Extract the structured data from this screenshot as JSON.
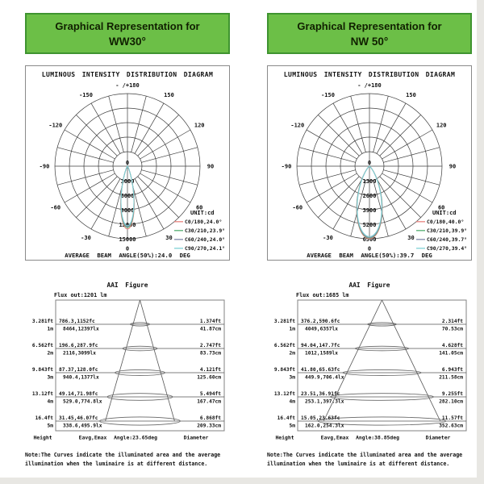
{
  "colors": {
    "header_bg": "#6cbf47",
    "header_border": "#3f9430",
    "grid": "#3c3c3c",
    "box_border": "#808080"
  },
  "columns": [
    {
      "header": {
        "line1": "Graphical Representation for",
        "line2": "WW30°"
      },
      "polar": {
        "title": "LUMINOUS INTENSITY DISTRIBUTION DIAGRAM",
        "top_label": "- /+180",
        "angle_labels": [
          {
            "text": "-150",
            "deg": -150
          },
          {
            "text": "150",
            "deg": 150
          },
          {
            "text": "-120",
            "deg": -120
          },
          {
            "text": "120",
            "deg": 120
          },
          {
            "text": "-90",
            "deg": -90
          },
          {
            "text": "90",
            "deg": 90
          },
          {
            "text": "-60",
            "deg": -60
          },
          {
            "text": "60",
            "deg": 60
          },
          {
            "text": "-30",
            "deg": -30
          },
          {
            "text": "30",
            "deg": 30
          },
          {
            "text": "0",
            "deg": 0
          }
        ],
        "radial_tick_labels": [
          "0",
          "3000",
          "6000",
          "9000",
          "12000",
          "15000"
        ],
        "unit_label": "UNIT:cd",
        "legend": [
          "C0/180,24.0°",
          "C30/210,23.9°",
          "C60/240,24.0°",
          "C90/270,24.1°"
        ],
        "footer": "AVERAGE BEAM ANGLE(50%):24.0 DEG"
      },
      "aai": {
        "title": "AAI Figure",
        "flux_label": "Flux out:1201 lm",
        "rows": [
          {
            "h_ft": "3.281ft",
            "h_m": "1m",
            "fc": "786.3,1152fc",
            "lx": "8464,12397lx",
            "d_ft": "1.374ft",
            "d_cm": "41.87cm"
          },
          {
            "h_ft": "6.562ft",
            "h_m": "2m",
            "fc": "196.6,287.9fc",
            "lx": "2116,3099lx",
            "d_ft": "2.747ft",
            "d_cm": "83.73cm"
          },
          {
            "h_ft": "9.843ft",
            "h_m": "3m",
            "fc": "87.37,128.0fc",
            "lx": "940.4,1377lx",
            "d_ft": "4.121ft",
            "d_cm": "125.60cm"
          },
          {
            "h_ft": "13.12ft",
            "h_m": "4m",
            "fc": "49.14,71.98fc",
            "lx": "529.0,774.8lx",
            "d_ft": "5.494ft",
            "d_cm": "167.47cm"
          },
          {
            "h_ft": "16.4ft",
            "h_m": "5m",
            "fc": "31.45,46.07fc",
            "lx": "338.6,495.9lx",
            "d_ft": "6.868ft",
            "d_cm": "209.33cm"
          }
        ],
        "col_height": "Height",
        "col_eavg": "Eavg,Emax",
        "angle_label": "Angle:23.65deg",
        "col_diameter": "Diameter"
      },
      "note": "Note:The Curves indicate the illuminated area and the average illumination when the luminaire is at different distance."
    },
    {
      "header": {
        "line1": "Graphical Representation for",
        "line2": "NW 50°"
      },
      "polar": {
        "title": "LUMINOUS INTENSITY DISTRIBUTION DIAGRAM",
        "top_label": "- /+180",
        "angle_labels": [
          {
            "text": "-150",
            "deg": -150
          },
          {
            "text": "150",
            "deg": 150
          },
          {
            "text": "-120",
            "deg": -120
          },
          {
            "text": "120",
            "deg": 120
          },
          {
            "text": "-90",
            "deg": -90
          },
          {
            "text": "90",
            "deg": 90
          },
          {
            "text": "-60",
            "deg": -60
          },
          {
            "text": "60",
            "deg": 60
          },
          {
            "text": "-30",
            "deg": -30
          },
          {
            "text": "30",
            "deg": 30
          },
          {
            "text": "0",
            "deg": 0
          }
        ],
        "radial_tick_labels": [
          "0",
          "1300",
          "2600",
          "3900",
          "5200",
          "6500"
        ],
        "unit_label": "UNIT:cd",
        "legend": [
          "C0/180,40.0°",
          "C30/210,39.9°",
          "C60/240,39.7°",
          "C90/270,39.4°"
        ],
        "footer": "AVERAGE BEAM ANGLE(50%):39.7 DEG"
      },
      "aai": {
        "title": "AAI Figure",
        "flux_label": "Flux out:1685 lm",
        "rows": [
          {
            "h_ft": "3.281ft",
            "h_m": "1m",
            "fc": "376.2,590.6fc",
            "lx": "4049,6357lx",
            "d_ft": "2.314ft",
            "d_cm": "70.53cm"
          },
          {
            "h_ft": "6.562ft",
            "h_m": "2m",
            "fc": "94.04,147.7fc",
            "lx": "1012,1589lx",
            "d_ft": "4.628ft",
            "d_cm": "141.05cm"
          },
          {
            "h_ft": "9.843ft",
            "h_m": "3m",
            "fc": "41.80,65.63fc",
            "lx": "449.9,706.4lx",
            "d_ft": "6.943ft",
            "d_cm": "211.58cm"
          },
          {
            "h_ft": "13.12ft",
            "h_m": "4m",
            "fc": "23.51,36.91fc",
            "lx": "253.1,397.3lx",
            "d_ft": "9.255ft",
            "d_cm": "282.10cm"
          },
          {
            "h_ft": "16.4ft",
            "h_m": "5m",
            "fc": "15.05,23.63fc",
            "lx": "162.0,254.3lx",
            "d_ft": "11.57ft",
            "d_cm": "352.63cm"
          }
        ],
        "col_height": "Height",
        "col_eavg": "Eavg,Emax",
        "angle_label": "Angle:38.85deg",
        "col_diameter": "Diameter"
      },
      "note": "Note:The Curves indicate the illuminated area and the average illumination when the luminaire is at different distance."
    }
  ],
  "chart_data": [
    {
      "type": "line",
      "subtype": "polar_intensity_distribution",
      "panel": "WW30",
      "title": "LUMINOUS INTENSITY DISTRIBUTION DIAGRAM",
      "unit": "cd",
      "radial_ticks_cd": [
        0,
        3000,
        6000,
        9000,
        12000,
        15000
      ],
      "angle_ticks_deg": [
        0,
        30,
        60,
        90,
        120,
        150,
        180,
        -30,
        -60,
        -90,
        -120,
        -150
      ],
      "average_beam_angle_50pct_deg": 24.0,
      "series": [
        {
          "name": "C0/180",
          "beam_angle_deg": 24.0,
          "peak_cd": 13000,
          "color": "#e8837e"
        },
        {
          "name": "C30/210",
          "beam_angle_deg": 23.9,
          "peak_cd": 12700,
          "color": "#54ae72"
        },
        {
          "name": "C60/240",
          "beam_angle_deg": 24.0,
          "peak_cd": 12500,
          "color": "#8289aa"
        },
        {
          "name": "C90/270",
          "beam_angle_deg": 24.1,
          "peak_cd": 12300,
          "color": "#7fd2d6"
        }
      ]
    },
    {
      "type": "line",
      "subtype": "polar_intensity_distribution",
      "panel": "NW50",
      "title": "LUMINOUS INTENSITY DISTRIBUTION DIAGRAM",
      "unit": "cd",
      "radial_ticks_cd": [
        0,
        1300,
        2600,
        3900,
        5200,
        6500
      ],
      "angle_ticks_deg": [
        0,
        30,
        60,
        90,
        120,
        150,
        180,
        -30,
        -60,
        -90,
        -120,
        -150
      ],
      "average_beam_angle_50pct_deg": 39.7,
      "series": [
        {
          "name": "C0/180",
          "beam_angle_deg": 40.0,
          "peak_cd": 6500,
          "color": "#e8837e"
        },
        {
          "name": "C30/210",
          "beam_angle_deg": 39.9,
          "peak_cd": 6430,
          "color": "#54ae72"
        },
        {
          "name": "C60/240",
          "beam_angle_deg": 39.7,
          "peak_cd": 6380,
          "color": "#8289aa"
        },
        {
          "name": "C90/270",
          "beam_angle_deg": 39.4,
          "peak_cd": 6300,
          "color": "#7fd2d6"
        }
      ]
    },
    {
      "type": "table",
      "subtype": "aai_cone_illumination",
      "panel": "WW30",
      "title": "AAI Figure",
      "flux_out_lm": 1201,
      "cone_angle_deg": 23.65,
      "columns": [
        "Height",
        "Eavg,Emax",
        "Diameter"
      ],
      "rows": [
        {
          "height_m": 1,
          "height_ft": 3.281,
          "eavg_fc": 786.3,
          "emax_fc": 1152,
          "eavg_lx": 8464,
          "emax_lx": 12397,
          "diameter_ft": 1.374,
          "diameter_cm": 41.87
        },
        {
          "height_m": 2,
          "height_ft": 6.562,
          "eavg_fc": 196.6,
          "emax_fc": 287.9,
          "eavg_lx": 2116,
          "emax_lx": 3099,
          "diameter_ft": 2.747,
          "diameter_cm": 83.73
        },
        {
          "height_m": 3,
          "height_ft": 9.843,
          "eavg_fc": 87.37,
          "emax_fc": 128.0,
          "eavg_lx": 940.4,
          "emax_lx": 1377,
          "diameter_ft": 4.121,
          "diameter_cm": 125.6
        },
        {
          "height_m": 4,
          "height_ft": 13.12,
          "eavg_fc": 49.14,
          "emax_fc": 71.98,
          "eavg_lx": 529.0,
          "emax_lx": 774.8,
          "diameter_ft": 5.494,
          "diameter_cm": 167.47
        },
        {
          "height_m": 5,
          "height_ft": 16.4,
          "eavg_fc": 31.45,
          "emax_fc": 46.07,
          "eavg_lx": 338.6,
          "emax_lx": 495.9,
          "diameter_ft": 6.868,
          "diameter_cm": 209.33
        }
      ]
    },
    {
      "type": "table",
      "subtype": "aai_cone_illumination",
      "panel": "NW50",
      "title": "AAI Figure",
      "flux_out_lm": 1685,
      "cone_angle_deg": 38.85,
      "columns": [
        "Height",
        "Eavg,Emax",
        "Diameter"
      ],
      "rows": [
        {
          "height_m": 1,
          "height_ft": 3.281,
          "eavg_fc": 376.2,
          "emax_fc": 590.6,
          "eavg_lx": 4049,
          "emax_lx": 6357,
          "diameter_ft": 2.314,
          "diameter_cm": 70.53
        },
        {
          "height_m": 2,
          "height_ft": 6.562,
          "eavg_fc": 94.04,
          "emax_fc": 147.7,
          "eavg_lx": 1012,
          "emax_lx": 1589,
          "diameter_ft": 4.628,
          "diameter_cm": 141.05
        },
        {
          "height_m": 3,
          "height_ft": 9.843,
          "eavg_fc": 41.8,
          "emax_fc": 65.63,
          "eavg_lx": 449.9,
          "emax_lx": 706.4,
          "diameter_ft": 6.943,
          "diameter_cm": 211.58
        },
        {
          "height_m": 4,
          "height_ft": 13.12,
          "eavg_fc": 23.51,
          "emax_fc": 36.91,
          "eavg_lx": 253.1,
          "emax_lx": 397.3,
          "diameter_ft": 9.255,
          "diameter_cm": 282.1
        },
        {
          "height_m": 5,
          "height_ft": 16.4,
          "eavg_fc": 15.05,
          "emax_fc": 23.63,
          "eavg_lx": 162.0,
          "emax_lx": 254.3,
          "diameter_ft": 11.57,
          "diameter_cm": 352.63
        }
      ]
    }
  ]
}
